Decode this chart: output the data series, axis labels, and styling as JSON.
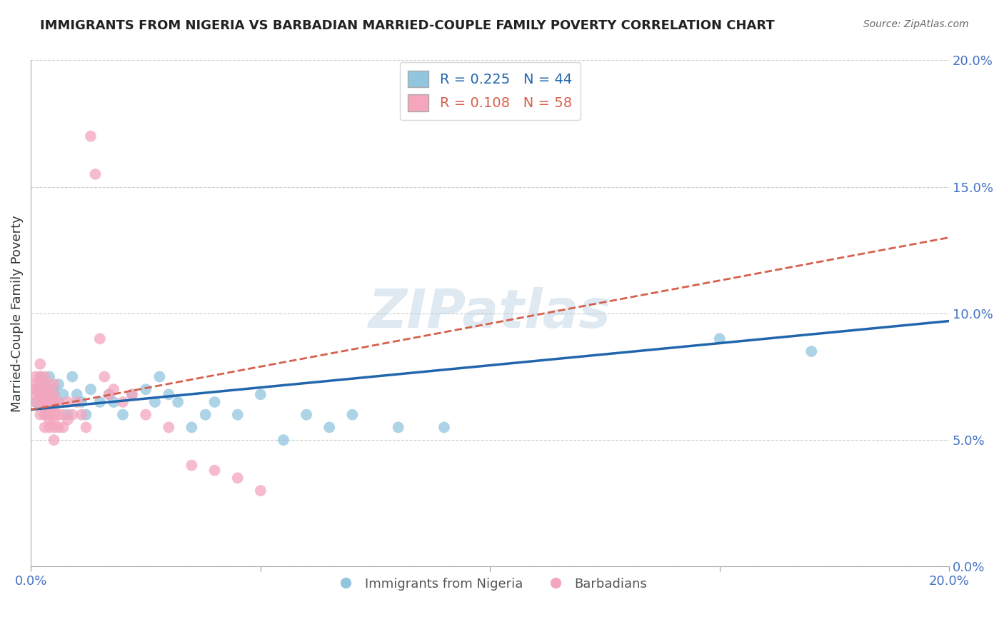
{
  "title": "IMMIGRANTS FROM NIGERIA VS BARBADIAN MARRIED-COUPLE FAMILY POVERTY CORRELATION CHART",
  "source": "Source: ZipAtlas.com",
  "ylabel": "Married-Couple Family Poverty",
  "xmin": 0.0,
  "xmax": 0.2,
  "ymin": 0.0,
  "ymax": 0.2,
  "yticks": [
    0.0,
    0.05,
    0.1,
    0.15,
    0.2
  ],
  "ytick_labels": [
    "0.0%",
    "5.0%",
    "10.0%",
    "15.0%",
    "20.0%"
  ],
  "xtick_major": [
    0.0,
    0.2
  ],
  "xtick_major_labels": [
    "0.0%",
    "20.0%"
  ],
  "xtick_minor": [
    0.05,
    0.1,
    0.15
  ],
  "legend_r_nigeria": "R = 0.225",
  "legend_n_nigeria": "N = 44",
  "legend_r_barbadian": "R = 0.108",
  "legend_n_barbadian": "N = 58",
  "legend_labels": [
    "Immigrants from Nigeria",
    "Barbadians"
  ],
  "color_nigeria": "#92c5de",
  "color_barbadian": "#f4a6bd",
  "trendline_color_nigeria": "#2166ac",
  "trendline_color_barbadian": "#d6604d",
  "watermark": "ZIPatlas",
  "nigeria_x": [
    0.001,
    0.001,
    0.002,
    0.002,
    0.003,
    0.003,
    0.003,
    0.004,
    0.004,
    0.005,
    0.005,
    0.005,
    0.006,
    0.006,
    0.007,
    0.008,
    0.009,
    0.01,
    0.011,
    0.012,
    0.013,
    0.015,
    0.017,
    0.018,
    0.02,
    0.022,
    0.025,
    0.027,
    0.028,
    0.03,
    0.032,
    0.035,
    0.038,
    0.04,
    0.045,
    0.05,
    0.055,
    0.06,
    0.065,
    0.07,
    0.08,
    0.09,
    0.15,
    0.17
  ],
  "nigeria_y": [
    0.065,
    0.07,
    0.068,
    0.075,
    0.06,
    0.065,
    0.072,
    0.068,
    0.075,
    0.065,
    0.07,
    0.068,
    0.072,
    0.065,
    0.068,
    0.06,
    0.075,
    0.068,
    0.065,
    0.06,
    0.07,
    0.065,
    0.068,
    0.065,
    0.06,
    0.068,
    0.07,
    0.065,
    0.075,
    0.068,
    0.065,
    0.055,
    0.06,
    0.065,
    0.06,
    0.068,
    0.05,
    0.06,
    0.055,
    0.06,
    0.055,
    0.055,
    0.09,
    0.085
  ],
  "barbadian_x": [
    0.001,
    0.001,
    0.001,
    0.001,
    0.001,
    0.002,
    0.002,
    0.002,
    0.002,
    0.002,
    0.002,
    0.003,
    0.003,
    0.003,
    0.003,
    0.003,
    0.003,
    0.003,
    0.004,
    0.004,
    0.004,
    0.004,
    0.004,
    0.004,
    0.004,
    0.005,
    0.005,
    0.005,
    0.005,
    0.005,
    0.005,
    0.005,
    0.005,
    0.006,
    0.006,
    0.006,
    0.007,
    0.007,
    0.008,
    0.008,
    0.009,
    0.01,
    0.011,
    0.012,
    0.013,
    0.014,
    0.015,
    0.016,
    0.017,
    0.018,
    0.02,
    0.022,
    0.025,
    0.03,
    0.035,
    0.04,
    0.045,
    0.05
  ],
  "barbadian_y": [
    0.065,
    0.068,
    0.07,
    0.072,
    0.075,
    0.06,
    0.065,
    0.068,
    0.072,
    0.075,
    0.08,
    0.055,
    0.06,
    0.063,
    0.065,
    0.068,
    0.07,
    0.075,
    0.055,
    0.058,
    0.06,
    0.063,
    0.065,
    0.068,
    0.072,
    0.05,
    0.055,
    0.058,
    0.06,
    0.063,
    0.065,
    0.068,
    0.072,
    0.055,
    0.06,
    0.065,
    0.055,
    0.06,
    0.058,
    0.065,
    0.06,
    0.065,
    0.06,
    0.055,
    0.17,
    0.155,
    0.09,
    0.075,
    0.068,
    0.07,
    0.065,
    0.068,
    0.06,
    0.055,
    0.04,
    0.038,
    0.035,
    0.03
  ],
  "trendline_nigeria_y0": 0.062,
  "trendline_nigeria_y1": 0.097,
  "trendline_barbadian_y0": 0.062,
  "trendline_barbadian_y1": 0.13
}
